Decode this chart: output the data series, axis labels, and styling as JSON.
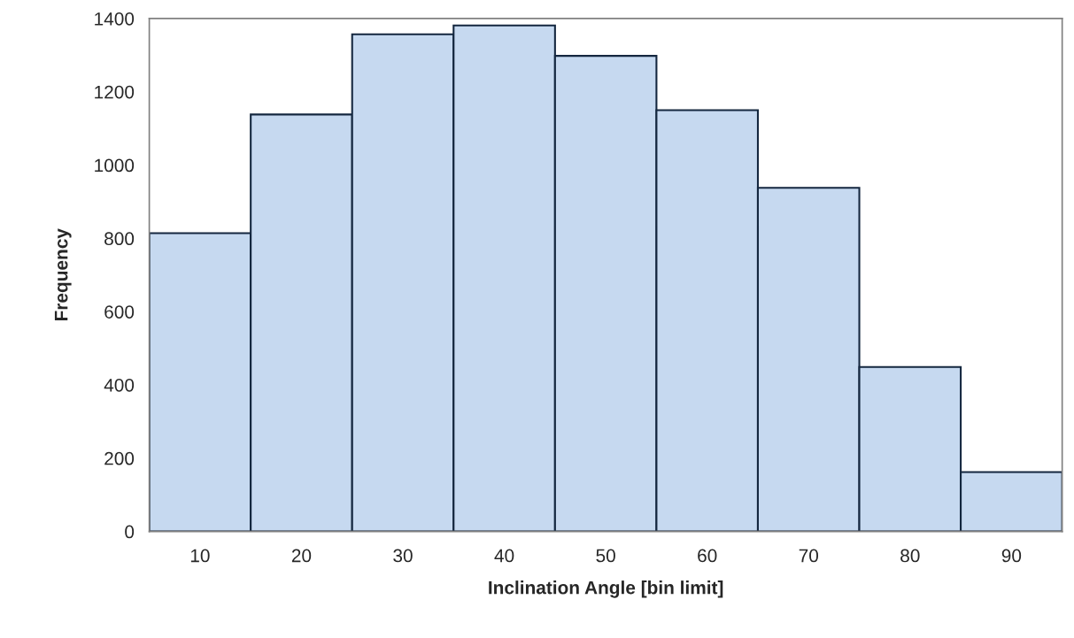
{
  "chart_data": {
    "type": "bar",
    "categories": [
      "10",
      "20",
      "30",
      "40",
      "50",
      "60",
      "70",
      "80",
      "90"
    ],
    "values": [
      814,
      1138,
      1357,
      1381,
      1298,
      1150,
      938,
      449,
      162
    ],
    "color": "#c6d9f0",
    "xlabel": "Inclination Angle [bin limit]",
    "ylabel": "Frequency",
    "ylim": [
      0,
      1400
    ],
    "yticks": [
      0,
      200,
      400,
      600,
      800,
      1000,
      1200,
      1400
    ],
    "grid": false
  }
}
